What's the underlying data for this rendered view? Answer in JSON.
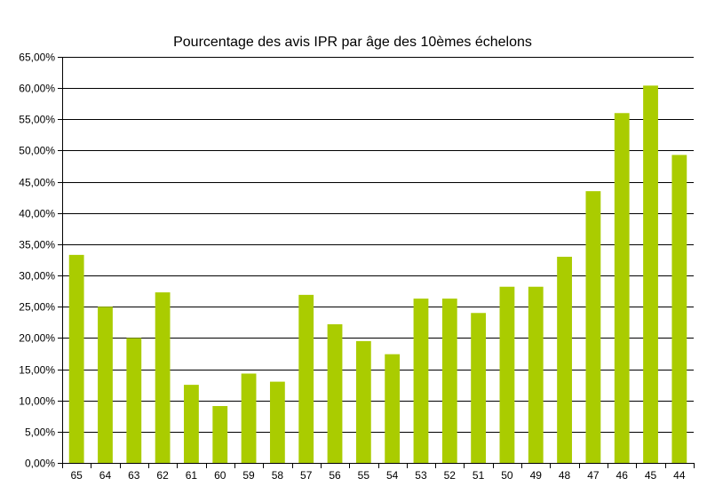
{
  "chart_data": {
    "type": "bar",
    "title": "Pourcentage des avis IPR par âge des 10èmes échelons",
    "xlabel": "",
    "ylabel": "",
    "categories": [
      "65",
      "64",
      "63",
      "62",
      "61",
      "60",
      "59",
      "58",
      "57",
      "56",
      "55",
      "54",
      "53",
      "52",
      "51",
      "50",
      "49",
      "48",
      "47",
      "46",
      "45",
      "44"
    ],
    "values": [
      33.3,
      25.0,
      20.0,
      27.3,
      12.5,
      9.1,
      14.3,
      13.0,
      26.9,
      22.2,
      19.5,
      17.4,
      26.3,
      26.3,
      24.0,
      28.2,
      28.2,
      33.0,
      43.5,
      56.0,
      60.4,
      49.3
    ],
    "ylim": [
      0,
      65
    ],
    "ytick_step": 5,
    "ytick_labels": [
      "0,00%",
      "5,00%",
      "10,00%",
      "15,00%",
      "20,00%",
      "25,00%",
      "30,00%",
      "35,00%",
      "40,00%",
      "45,00%",
      "50,00%",
      "55,00%",
      "60,00%",
      "65,00%"
    ],
    "grid": true,
    "legend": "none",
    "bar_color": "#aacc00"
  }
}
